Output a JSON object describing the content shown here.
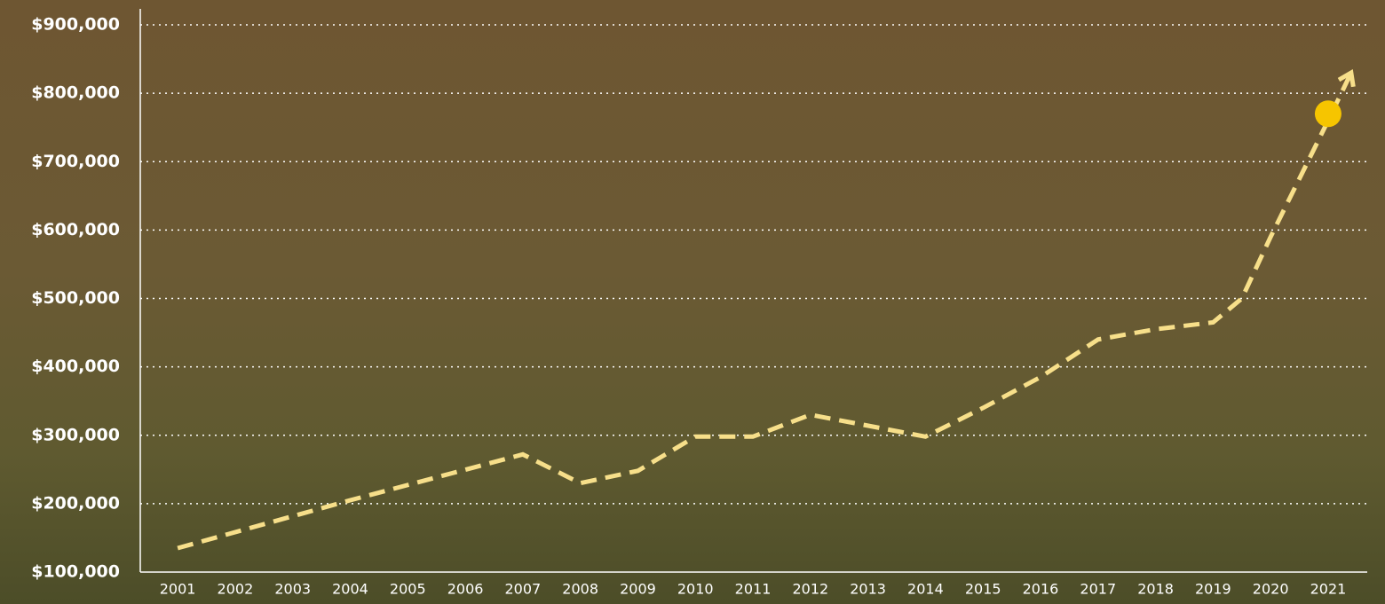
{
  "chart_data": {
    "type": "line",
    "x": [
      2001,
      2004,
      2007,
      2008,
      2009,
      2010,
      2011,
      2012,
      2014,
      2015,
      2016,
      2017,
      2018,
      2019,
      2019.5,
      2020,
      2021,
      2021.4
    ],
    "series": [
      {
        "color": "#f7df8a",
        "values": [
          135000,
          205000,
          272000,
          230000,
          248000,
          298000,
          298000,
          330000,
          298000,
          340000,
          385000,
          440000,
          455000,
          465000,
          500000,
          590000,
          760000,
          830000
        ]
      }
    ],
    "highlight": {
      "x": 2021,
      "y": 770000,
      "color": "#f6c500"
    },
    "xlim": [
      2000.35,
      2021.68
    ],
    "xticks": [
      2001,
      2002,
      2003,
      2004,
      2005,
      2006,
      2007,
      2008,
      2009,
      2010,
      2011,
      2012,
      2013,
      2014,
      2015,
      2016,
      2017,
      2018,
      2019,
      2020,
      2021
    ],
    "ylim": [
      100000,
      900000
    ],
    "yticks": [
      {
        "value": 100000,
        "label": "$100,000"
      },
      {
        "value": 200000,
        "label": "$200,000"
      },
      {
        "value": 300000,
        "label": "$300,000"
      },
      {
        "value": 400000,
        "label": "$400,000"
      },
      {
        "value": 500000,
        "label": "$500,000"
      },
      {
        "value": 600000,
        "label": "$600,000"
      },
      {
        "value": 700000,
        "label": "$700,000"
      },
      {
        "value": 800000,
        "label": "$800,000"
      },
      {
        "value": 900000,
        "label": "$900,000"
      }
    ],
    "grid": true
  }
}
